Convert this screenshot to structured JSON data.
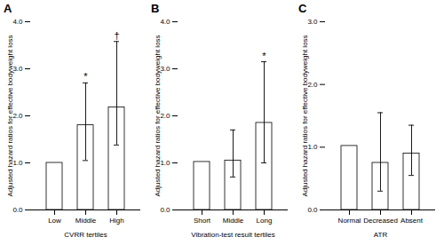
{
  "chart_data": [
    {
      "type": "bar",
      "title": "A",
      "categories": [
        "Low",
        "Middle",
        "High"
      ],
      "values": [
        1.0,
        1.8,
        2.18
      ],
      "err_low": [
        0.0,
        0.75,
        0.8
      ],
      "err_high": [
        0.0,
        0.9,
        1.4
      ],
      "annotations": [
        null,
        "*",
        "†"
      ],
      "xlabel": "CVRR tertiles",
      "ylabel": "Adjusted hazard ratios for effective bodyweight loss",
      "ylim": [
        0,
        4
      ],
      "yticks": [
        0,
        1,
        2,
        3,
        4
      ],
      "color": "#ffffff"
    },
    {
      "type": "bar",
      "title": "B",
      "categories": [
        "Short",
        "Middle",
        "Long"
      ],
      "values": [
        1.02,
        1.05,
        1.85
      ],
      "err_low": [
        0.0,
        0.35,
        0.85
      ],
      "err_high": [
        0.0,
        0.65,
        1.3
      ],
      "annotations": [
        null,
        null,
        "*"
      ],
      "xlabel": "Vibration-test result tertiles",
      "ylabel": "Adjusted hazard ratios for effective bodyweight loss",
      "ylim": [
        0,
        4
      ],
      "yticks": [
        0,
        1,
        2,
        3,
        4
      ],
      "color": "#ffffff"
    },
    {
      "type": "bar",
      "title": "C",
      "categories": [
        "Normal",
        "Decreased",
        "Absent"
      ],
      "values": [
        1.02,
        0.75,
        0.9
      ],
      "err_low": [
        0.0,
        0.45,
        0.35
      ],
      "err_high": [
        0.0,
        0.8,
        0.45
      ],
      "xlabel": "ATR",
      "ylabel": "Adjusted hazard ratios for effective bodyweight loss",
      "ylim": [
        0,
        3
      ],
      "yticks": [
        0,
        1,
        2,
        3
      ],
      "color": "#ffffff"
    }
  ]
}
